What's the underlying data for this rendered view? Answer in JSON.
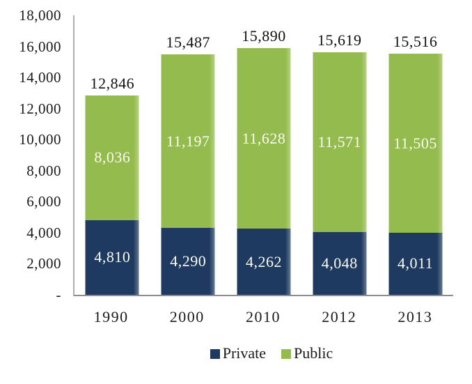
{
  "chart_data": {
    "type": "bar",
    "stacked": true,
    "title": "",
    "xlabel": "",
    "ylabel": "",
    "categories": [
      "1990",
      "2000",
      "2010",
      "2012",
      "2013"
    ],
    "series": [
      {
        "name": "Private",
        "color": "#1F3A60",
        "values": [
          4810,
          4290,
          4262,
          4048,
          4011
        ],
        "labels": [
          "4,810",
          "4,290",
          "4,262",
          "4,048",
          "4,011"
        ]
      },
      {
        "name": "Public",
        "color": "#94BB4D",
        "values": [
          8036,
          11197,
          11628,
          11571,
          11505
        ],
        "labels": [
          "8,036",
          "11,197",
          "11,628",
          "11,571",
          "11,505"
        ]
      }
    ],
    "totals": [
      12846,
      15487,
      15890,
      15619,
      15516
    ],
    "total_labels": [
      "12,846",
      "15,487",
      "15,890",
      "15,619",
      "15,516"
    ],
    "ylim": [
      0,
      18000
    ],
    "ytick_interval": 2000,
    "yticks": [
      {
        "value": 18000,
        "label": "18,000"
      },
      {
        "value": 16000,
        "label": "16,000"
      },
      {
        "value": 14000,
        "label": "14,000"
      },
      {
        "value": 12000,
        "label": "12,000"
      },
      {
        "value": 10000,
        "label": "10,000"
      },
      {
        "value": 8000,
        "label": "8,000"
      },
      {
        "value": 6000,
        "label": "6,000"
      },
      {
        "value": 4000,
        "label": "4,000"
      },
      {
        "value": 2000,
        "label": "2,000"
      },
      {
        "value": 0,
        "label": "-"
      }
    ],
    "grid": false,
    "legend_position": "bottom",
    "legend_labels": [
      "Private",
      "Public"
    ]
  },
  "colors": {
    "private": "#1F3A60",
    "public": "#94BB4D",
    "value_label": "#FBFBF0",
    "axis_line_vertical": "#AEAEAE",
    "axis_line_horizontal": "#8D8D8D",
    "text": "#1A1A1A",
    "background": "#FFFFFF"
  }
}
